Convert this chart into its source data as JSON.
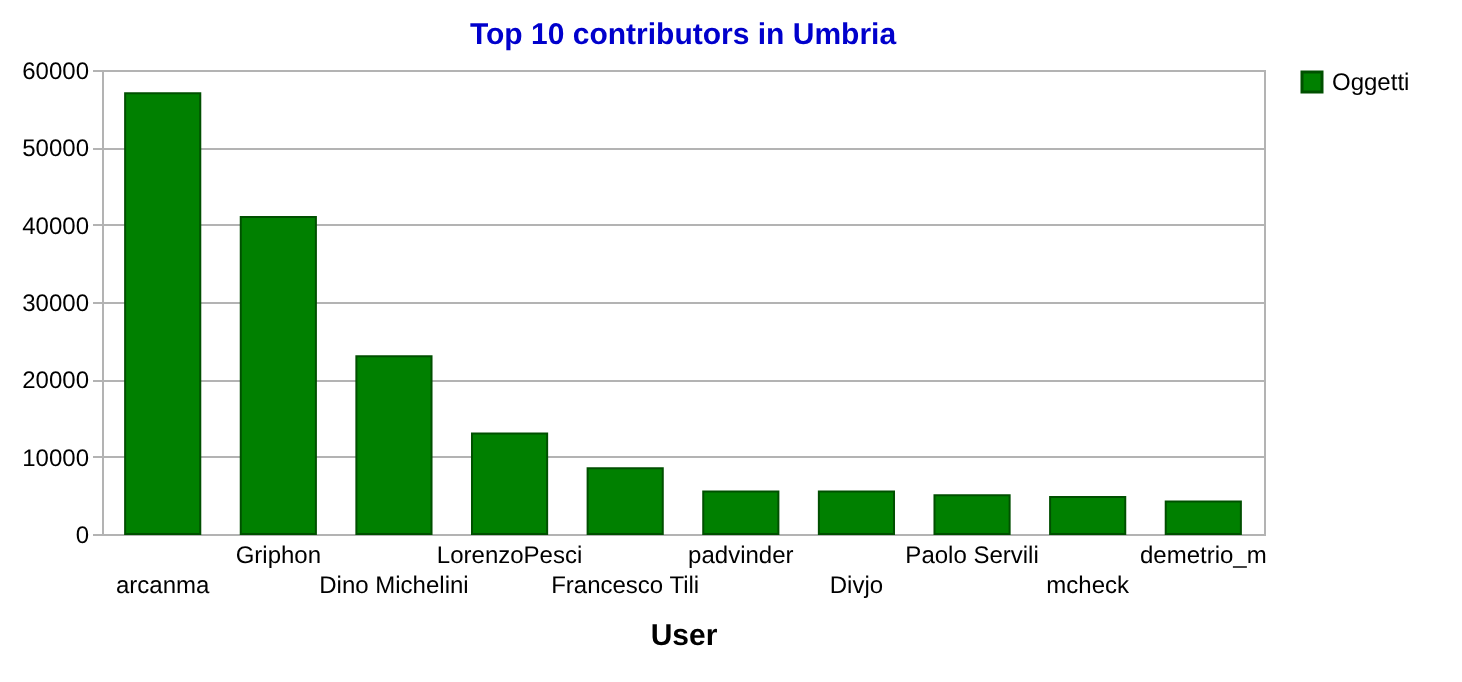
{
  "chart_data": {
    "type": "bar",
    "title": "Top 10 contributors in Umbria",
    "xlabel": "User",
    "categories": [
      "arcanma",
      "Griphon",
      "Dino Michelini",
      "LorenzoPesci",
      "Francesco Tili",
      "padvinder",
      "Divjo",
      "Paolo Servili",
      "mcheck",
      "demetrio_m"
    ],
    "series": [
      {
        "name": "Oggetti",
        "color": "#008000",
        "values": [
          57000,
          41000,
          23000,
          13000,
          8500,
          5500,
          5500,
          5000,
          4800,
          4200
        ]
      }
    ],
    "ylim": [
      0,
      60000
    ],
    "yticks": [
      0,
      10000,
      20000,
      30000,
      40000,
      50000,
      60000
    ],
    "grid": "y",
    "legend": "right"
  }
}
